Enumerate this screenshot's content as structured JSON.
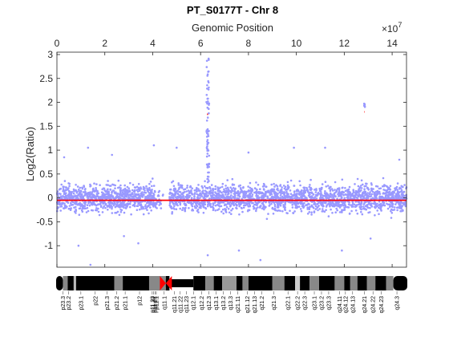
{
  "chart_data": {
    "type": "scatter",
    "title": "PT_S0177T - Chr 8",
    "xlabel": "Genomic Position",
    "ylabel": "Log2(Ratio)",
    "x_exponent_label": "×10",
    "x_exponent_power": "7",
    "xlim": [
      0,
      14.6
    ],
    "ylim": [
      -1.45,
      3.05
    ],
    "x_ticks": [
      0,
      2,
      4,
      6,
      8,
      10,
      12,
      14
    ],
    "x_tick_labels": [
      "0",
      "2",
      "4",
      "6",
      "8",
      "10",
      "12",
      "14"
    ],
    "y_ticks": [
      -1,
      -0.5,
      0,
      0.5,
      1,
      1.5,
      2,
      2.5,
      3
    ],
    "y_tick_labels": [
      "-1",
      "-0.5",
      "0",
      "0.5",
      "1",
      "1.5",
      "2",
      "2.5",
      "3"
    ],
    "colors": {
      "points": "#9999ff",
      "segment": "#ff0000",
      "axes": "#262626"
    },
    "point_clusters": [
      {
        "x_range": [
          0.0,
          4.1
        ],
        "y_range": [
          -0.5,
          0.5
        ],
        "count": 900
      },
      {
        "x_range": [
          4.1,
          4.45
        ],
        "y_range": [
          -0.4,
          0.3
        ],
        "count": 25
      },
      {
        "x_range": [
          4.7,
          14.6
        ],
        "y_range": [
          -0.5,
          0.5
        ],
        "count": 2100
      },
      {
        "x_range": [
          6.24,
          6.36
        ],
        "y_range": [
          0.3,
          3.0
        ],
        "count": 70
      },
      {
        "x_range": [
          12.83,
          12.87
        ],
        "y_range": [
          1.85,
          2.05
        ],
        "count": 6
      }
    ],
    "outlier_points": [
      {
        "x": 0.3,
        "y": 0.85
      },
      {
        "x": 0.9,
        "y": -1.0
      },
      {
        "x": 1.4,
        "y": -1.4
      },
      {
        "x": 1.3,
        "y": 1.05
      },
      {
        "x": 2.3,
        "y": 0.9
      },
      {
        "x": 3.4,
        "y": -0.95
      },
      {
        "x": 4.05,
        "y": 1.1
      },
      {
        "x": 5.0,
        "y": 1.05
      },
      {
        "x": 7.6,
        "y": -1.1
      },
      {
        "x": 8.5,
        "y": -1.3
      },
      {
        "x": 9.9,
        "y": 1.05
      },
      {
        "x": 11.2,
        "y": 1.05
      },
      {
        "x": 11.9,
        "y": -1.1
      },
      {
        "x": 13.1,
        "y": -0.85
      },
      {
        "x": 14.3,
        "y": 0.8
      },
      {
        "x": 6.3,
        "y": -1.2
      },
      {
        "x": 8.0,
        "y": 0.95
      },
      {
        "x": 2.8,
        "y": -0.8
      }
    ],
    "segments": [
      {
        "x0": 0.0,
        "x1": 14.6,
        "y": -0.05
      },
      {
        "x0": 6.27,
        "x1": 6.31,
        "y": 1.75
      },
      {
        "x0": 12.84,
        "x1": 12.86,
        "y": 1.8
      }
    ],
    "ideogram": {
      "bands": [
        {
          "start": 0.0,
          "end": 0.25,
          "shade": "#000000"
        },
        {
          "start": 0.25,
          "end": 0.45,
          "shade": "#888888"
        },
        {
          "start": 0.45,
          "end": 0.7,
          "shade": "#000000"
        },
        {
          "start": 0.7,
          "end": 0.8,
          "shade": "#bbbbbb"
        },
        {
          "start": 0.8,
          "end": 2.4,
          "shade": "#000000"
        },
        {
          "start": 2.4,
          "end": 2.75,
          "shade": "#888888"
        },
        {
          "start": 2.75,
          "end": 3.85,
          "shade": "#000000"
        },
        {
          "start": 3.85,
          "end": 4.55,
          "shade": "#888888"
        },
        {
          "start": 4.55,
          "end": 4.7,
          "shade": "#000000"
        },
        {
          "start": 5.7,
          "end": 6.2,
          "shade": "#000000"
        },
        {
          "start": 6.2,
          "end": 6.55,
          "shade": "#888888"
        },
        {
          "start": 6.55,
          "end": 6.9,
          "shade": "#000000"
        },
        {
          "start": 6.9,
          "end": 7.5,
          "shade": "#999999"
        },
        {
          "start": 7.5,
          "end": 7.75,
          "shade": "#000000"
        },
        {
          "start": 7.75,
          "end": 8.0,
          "shade": "#888888"
        },
        {
          "start": 8.0,
          "end": 9.0,
          "shade": "#000000"
        },
        {
          "start": 9.0,
          "end": 9.5,
          "shade": "#888888"
        },
        {
          "start": 9.5,
          "end": 9.95,
          "shade": "#000000"
        },
        {
          "start": 9.95,
          "end": 10.15,
          "shade": "#cccccc"
        },
        {
          "start": 10.15,
          "end": 10.55,
          "shade": "#000000"
        },
        {
          "start": 10.55,
          "end": 10.95,
          "shade": "#888888"
        },
        {
          "start": 10.95,
          "end": 11.6,
          "shade": "#000000"
        },
        {
          "start": 11.6,
          "end": 12.0,
          "shade": "#888888"
        },
        {
          "start": 12.0,
          "end": 12.25,
          "shade": "#000000"
        },
        {
          "start": 12.25,
          "end": 12.55,
          "shade": "#888888"
        },
        {
          "start": 12.55,
          "end": 12.95,
          "shade": "#000000"
        },
        {
          "start": 12.95,
          "end": 13.3,
          "shade": "#888888"
        },
        {
          "start": 13.3,
          "end": 13.75,
          "shade": "#000000"
        },
        {
          "start": 13.75,
          "end": 14.05,
          "shade": "#888888"
        },
        {
          "start": 14.05,
          "end": 14.6,
          "shade": "#000000"
        }
      ],
      "centromere": {
        "start": 4.3,
        "end": 4.8,
        "color": "#ff0000"
      },
      "band_labels": [
        {
          "pos": 0.25,
          "text": "p23.3"
        },
        {
          "pos": 0.48,
          "text": "p23.2"
        },
        {
          "pos": 1.0,
          "text": "p23.1"
        },
        {
          "pos": 1.6,
          "text": "p22"
        },
        {
          "pos": 2.1,
          "text": "p21.3"
        },
        {
          "pos": 2.5,
          "text": "p21.2"
        },
        {
          "pos": 2.85,
          "text": "p21.1"
        },
        {
          "pos": 3.45,
          "text": "p12"
        },
        {
          "pos": 3.98,
          "text": "p11.23"
        },
        {
          "pos": 4.04,
          "text": "p11.22"
        },
        {
          "pos": 4.1,
          "text": "p11.21"
        },
        {
          "pos": 4.15,
          "text": "p11.1"
        },
        {
          "pos": 4.48,
          "text": "q11.1"
        },
        {
          "pos": 4.9,
          "text": "q11.21"
        },
        {
          "pos": 5.15,
          "text": "q11.22"
        },
        {
          "pos": 5.4,
          "text": "q11.23"
        },
        {
          "pos": 5.7,
          "text": "q12.1"
        },
        {
          "pos": 6.05,
          "text": "q12.2"
        },
        {
          "pos": 6.35,
          "text": "q12.3"
        },
        {
          "pos": 6.65,
          "text": "q13.1"
        },
        {
          "pos": 6.95,
          "text": "q13.2"
        },
        {
          "pos": 7.25,
          "text": "q13.3"
        },
        {
          "pos": 7.55,
          "text": "q21.11"
        },
        {
          "pos": 7.95,
          "text": "q21.12"
        },
        {
          "pos": 8.25,
          "text": "q21.13"
        },
        {
          "pos": 8.55,
          "text": "q21.2"
        },
        {
          "pos": 9.05,
          "text": "q21.3"
        },
        {
          "pos": 9.65,
          "text": "q22.1"
        },
        {
          "pos": 10.05,
          "text": "q22.2"
        },
        {
          "pos": 10.35,
          "text": "q22.3"
        },
        {
          "pos": 10.75,
          "text": "q23.1"
        },
        {
          "pos": 11.05,
          "text": "q23.2"
        },
        {
          "pos": 11.35,
          "text": "q23.3"
        },
        {
          "pos": 11.8,
          "text": "q24.11"
        },
        {
          "pos": 12.05,
          "text": "q24.12"
        },
        {
          "pos": 12.35,
          "text": "q24.13"
        },
        {
          "pos": 12.85,
          "text": "q24.21"
        },
        {
          "pos": 13.2,
          "text": "q24.22"
        },
        {
          "pos": 13.55,
          "text": "q24.23"
        },
        {
          "pos": 14.2,
          "text": "q24.3"
        }
      ]
    }
  }
}
